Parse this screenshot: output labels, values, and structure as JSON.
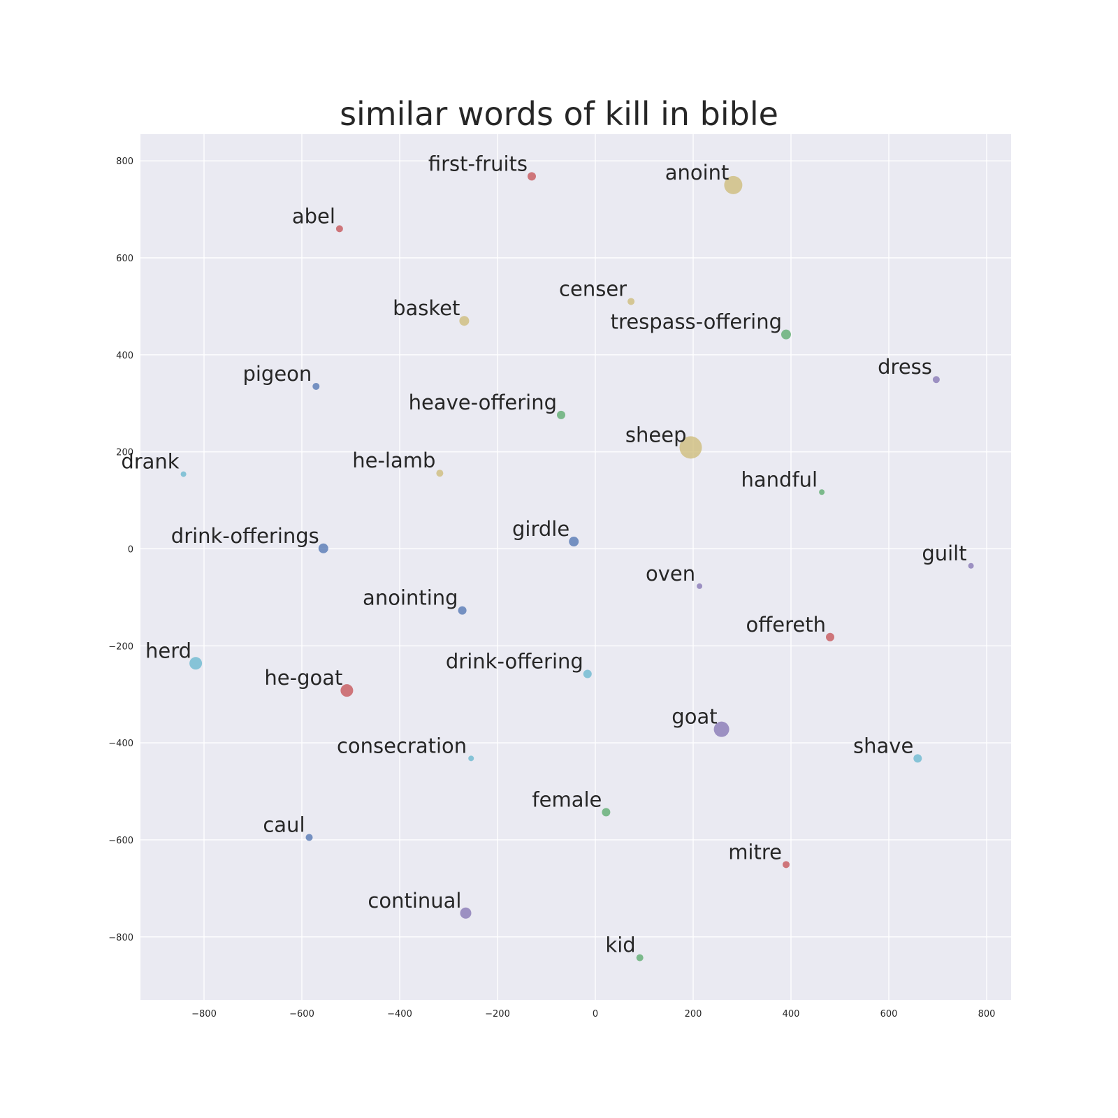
{
  "chart_data": {
    "type": "scatter",
    "title": "similar words of kill in bible",
    "xlabel": "",
    "ylabel": "",
    "xlim": [
      -930,
      850
    ],
    "ylim": [
      -930,
      855
    ],
    "xticks": [
      -800,
      -600,
      -400,
      -200,
      0,
      200,
      400,
      600,
      800
    ],
    "yticks": [
      -800,
      -600,
      -400,
      -200,
      0,
      200,
      400,
      600,
      800
    ],
    "xtick_labels": [
      "−800",
      "−600",
      "−400",
      "−200",
      "0",
      "200",
      "400",
      "600",
      "800"
    ],
    "ytick_labels": [
      "−800",
      "−600",
      "−400",
      "−200",
      "0",
      "200",
      "400",
      "600",
      "800"
    ],
    "grid": true,
    "background": "#eaeaf2",
    "palette": {
      "red": "#c44e52",
      "tan": "#ccb974",
      "green": "#55a868",
      "blue": "#4c72b0",
      "purple": "#8172b2",
      "cyan": "#64b5cd"
    },
    "points": [
      {
        "label": "first-fruits",
        "x": -130,
        "y": 768,
        "size": 6,
        "color": "red"
      },
      {
        "label": "anoint",
        "x": 282,
        "y": 750,
        "size": 13,
        "color": "tan"
      },
      {
        "label": "abel",
        "x": -523,
        "y": 660,
        "size": 5,
        "color": "red"
      },
      {
        "label": "censer",
        "x": 73,
        "y": 510,
        "size": 5,
        "color": "tan"
      },
      {
        "label": "basket",
        "x": -268,
        "y": 470,
        "size": 7,
        "color": "tan"
      },
      {
        "label": "trespass-offering",
        "x": 390,
        "y": 442,
        "size": 7,
        "color": "green"
      },
      {
        "label": "dress",
        "x": 697,
        "y": 349,
        "size": 5,
        "color": "purple"
      },
      {
        "label": "pigeon",
        "x": -571,
        "y": 335,
        "size": 5,
        "color": "blue"
      },
      {
        "label": "heave-offering",
        "x": -70,
        "y": 276,
        "size": 6,
        "color": "green"
      },
      {
        "label": "sheep",
        "x": 195,
        "y": 209,
        "size": 16,
        "color": "tan"
      },
      {
        "label": "drank",
        "x": -842,
        "y": 154,
        "size": 4,
        "color": "cyan"
      },
      {
        "label": "he-lamb",
        "x": -318,
        "y": 156,
        "size": 5,
        "color": "tan"
      },
      {
        "label": "handful",
        "x": 463,
        "y": 117,
        "size": 4,
        "color": "green"
      },
      {
        "label": "girdle",
        "x": -44,
        "y": 15,
        "size": 7,
        "color": "blue"
      },
      {
        "label": "drink-offerings",
        "x": -556,
        "y": 1,
        "size": 7,
        "color": "blue"
      },
      {
        "label": "guilt",
        "x": 768,
        "y": -35,
        "size": 4,
        "color": "purple"
      },
      {
        "label": "oven",
        "x": 213,
        "y": -77,
        "size": 4,
        "color": "purple"
      },
      {
        "label": "anointing",
        "x": -272,
        "y": -127,
        "size": 6,
        "color": "blue"
      },
      {
        "label": "offereth",
        "x": 480,
        "y": -182,
        "size": 6,
        "color": "red"
      },
      {
        "label": "herd",
        "x": -817,
        "y": -236,
        "size": 9,
        "color": "cyan"
      },
      {
        "label": "drink-offering",
        "x": -16,
        "y": -258,
        "size": 6,
        "color": "cyan"
      },
      {
        "label": "he-goat",
        "x": -508,
        "y": -292,
        "size": 9,
        "color": "red"
      },
      {
        "label": "goat",
        "x": 258,
        "y": -372,
        "size": 11,
        "color": "purple"
      },
      {
        "label": "consecration",
        "x": -254,
        "y": -432,
        "size": 4,
        "color": "cyan"
      },
      {
        "label": "shave",
        "x": 659,
        "y": -432,
        "size": 6,
        "color": "cyan"
      },
      {
        "label": "female",
        "x": 22,
        "y": -543,
        "size": 6,
        "color": "green"
      },
      {
        "label": "caul",
        "x": -585,
        "y": -595,
        "size": 5,
        "color": "blue"
      },
      {
        "label": "mitre",
        "x": 390,
        "y": -651,
        "size": 5,
        "color": "red"
      },
      {
        "label": "continual",
        "x": -265,
        "y": -751,
        "size": 8,
        "color": "purple"
      },
      {
        "label": "kid",
        "x": 91,
        "y": -843,
        "size": 5,
        "color": "green"
      }
    ]
  }
}
